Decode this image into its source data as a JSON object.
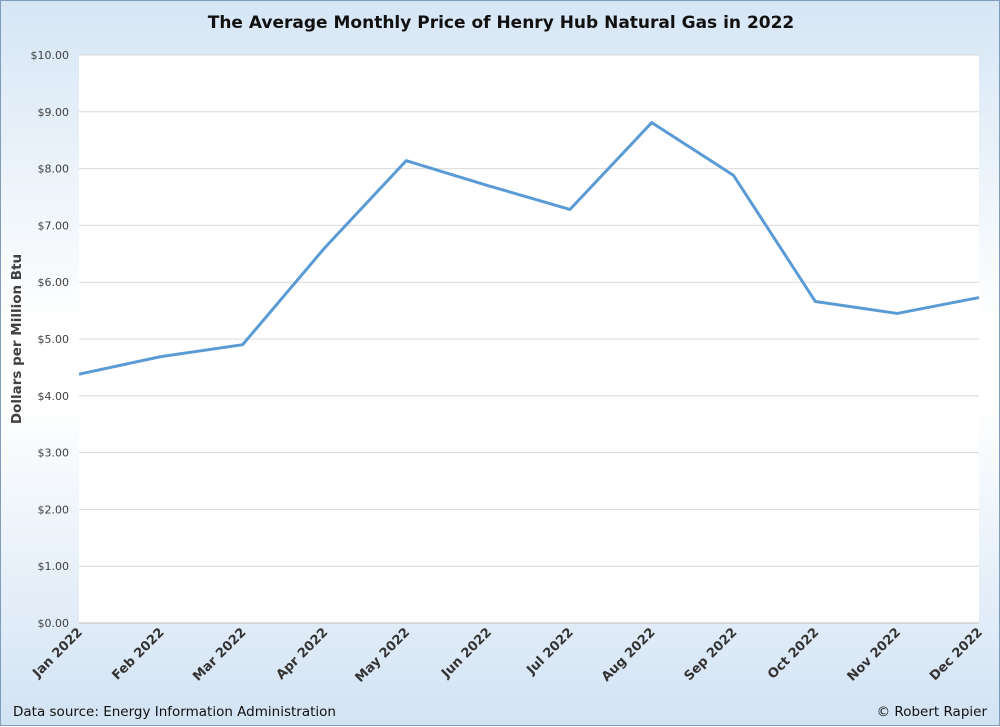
{
  "chart_data": {
    "type": "line",
    "title": "The Average Monthly Price of Henry Hub Natural Gas in 2022",
    "xlabel": "",
    "ylabel": "Dollars per Million Btu",
    "categories": [
      "Jan 2022",
      "Feb 2022",
      "Mar 2022",
      "Apr 2022",
      "May 2022",
      "Jun 2022",
      "Jul 2022",
      "Aug 2022",
      "Sep 2022",
      "Oct 2022",
      "Nov 2022",
      "Dec 2022"
    ],
    "series": [
      {
        "values": [
          4.38,
          4.69,
          4.9,
          6.6,
          8.14,
          7.7,
          7.28,
          8.81,
          7.88,
          5.66,
          5.45,
          5.73
        ],
        "color": "#5b9bd5"
      }
    ],
    "ylim": [
      0,
      10
    ],
    "yticks": [
      "$0.00",
      "$1.00",
      "$2.00",
      "$3.00",
      "$4.00",
      "$5.00",
      "$6.00",
      "$7.00",
      "$8.00",
      "$9.00",
      "$10.00"
    ],
    "grid": true,
    "legend": "none"
  },
  "footer": {
    "source": "Data source: Energy Information Administration",
    "credit": "© Robert Rapier"
  }
}
